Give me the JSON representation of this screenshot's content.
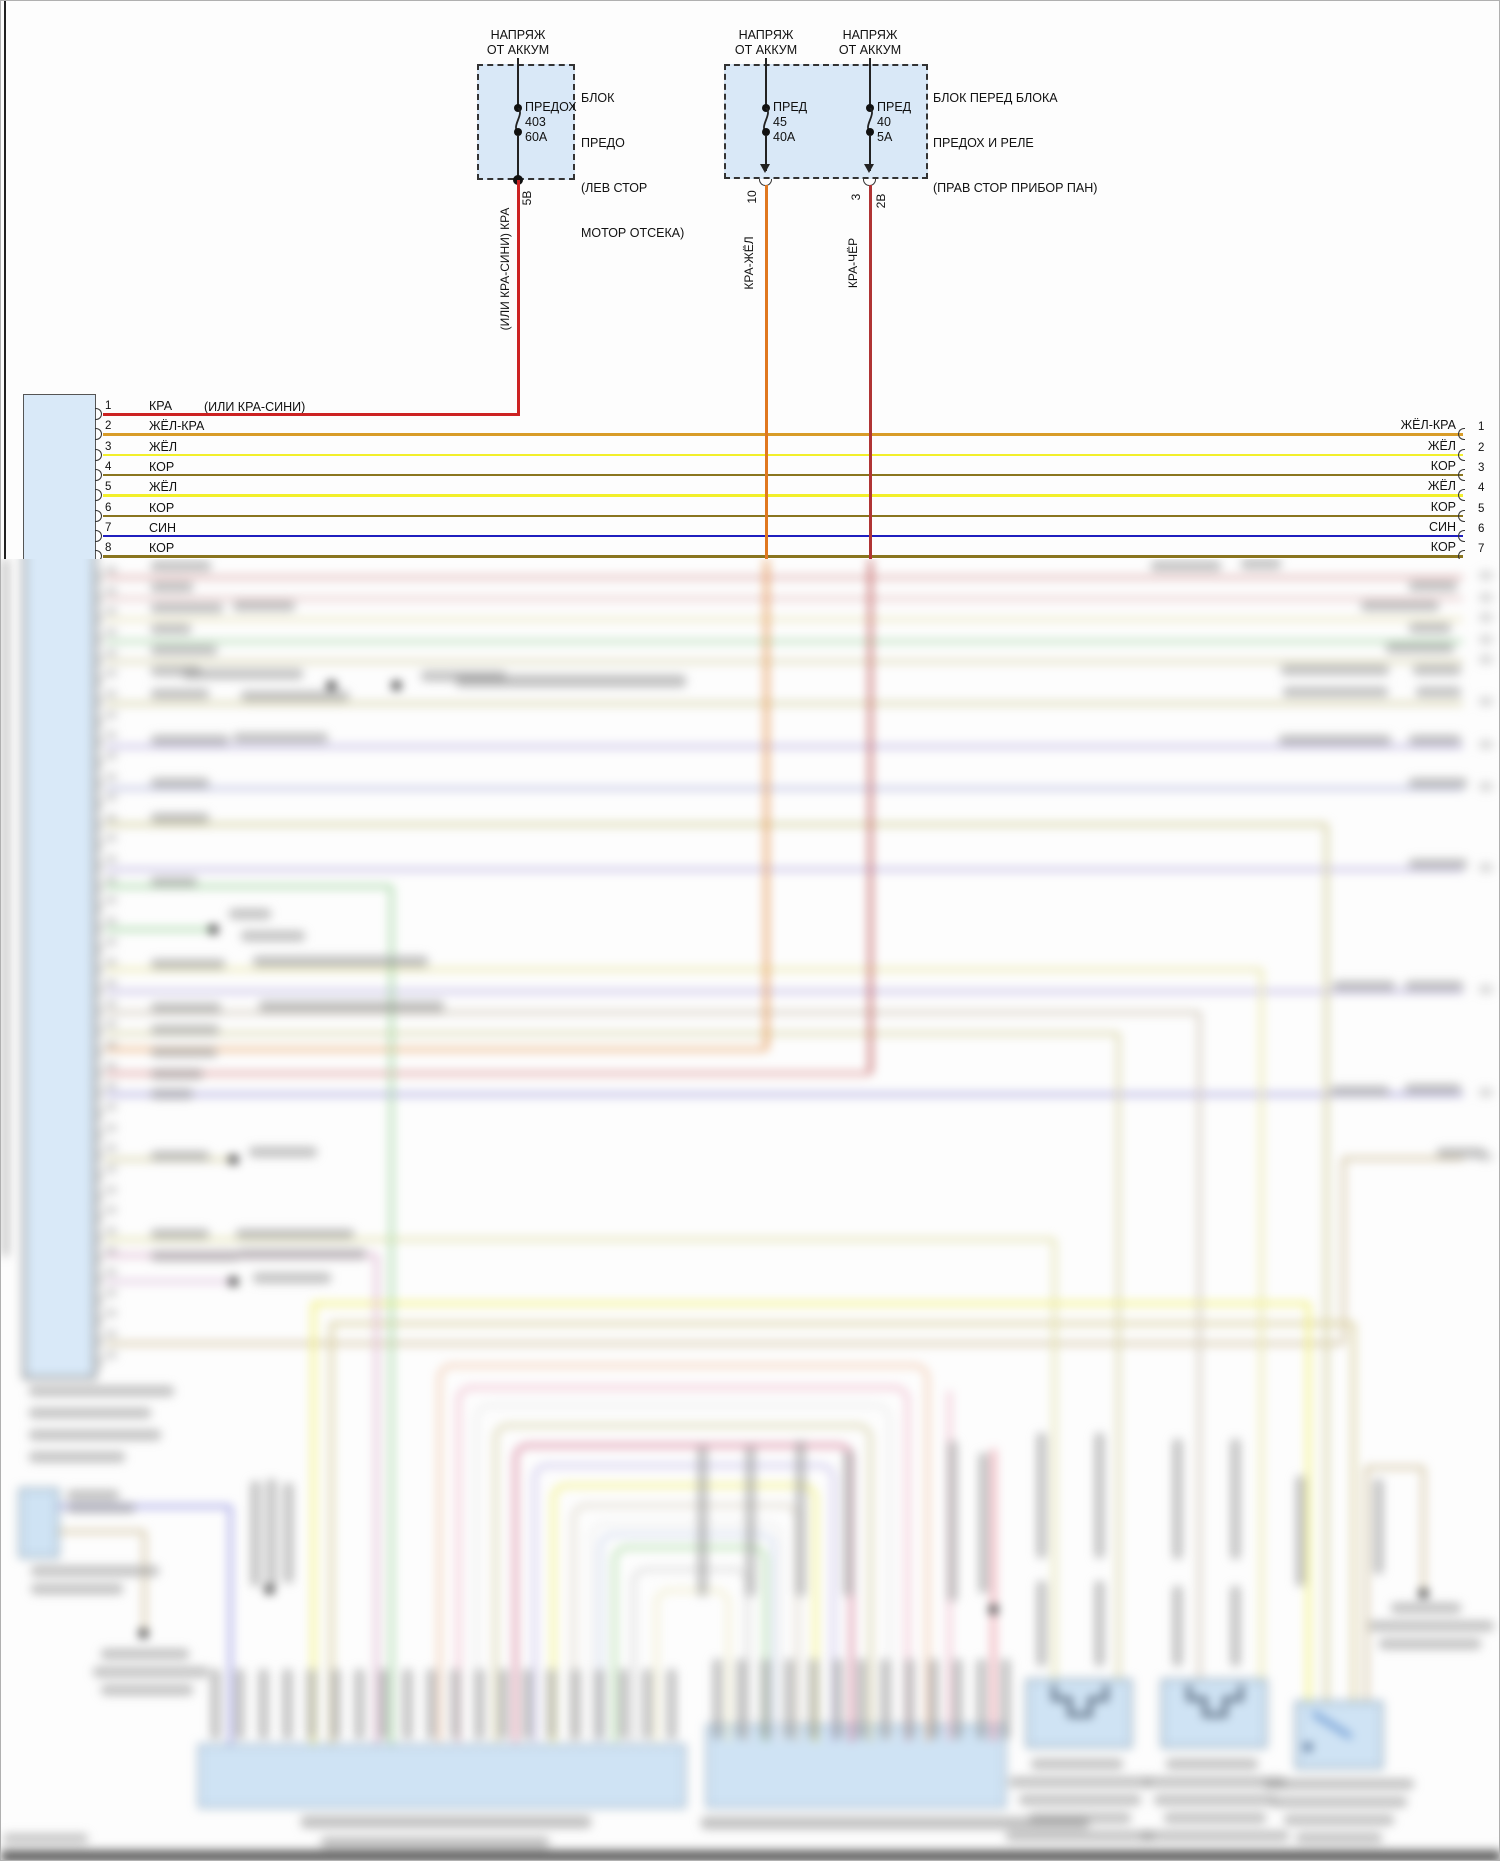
{
  "diagram": {
    "power_label": "НАПРЯЖ\nОТ АККУМ",
    "fuse_block_left": {
      "note_lines": [
        "БЛОК",
        "ПРЕДО",
        "(ЛЕВ СТОР",
        "МОТОР ОТСЕКА)"
      ],
      "fuse": {
        "name": "ПРЕДОХ",
        "number": "403",
        "rating": "60А"
      },
      "pin": "5В",
      "wire_label": "(ИЛИ КРА-СИНИ)  КРА"
    },
    "fuse_block_right": {
      "note_lines": [
        "БЛОК ПЕРЕД БЛОКА",
        "ПРЕДОХ И РЕЛЕ",
        "(ПРАВ СТОР ПРИБОР ПАН)"
      ],
      "fuses": [
        {
          "name": "ПРЕД",
          "number": "45",
          "rating": "40А",
          "pin": "10",
          "wire_label": "КРА-ЖЁЛ"
        },
        {
          "name": "ПРЕД",
          "number": "40",
          "rating": "5А",
          "pin": "3",
          "pin2": "2В",
          "wire_label": "КРА-ЧЁР"
        }
      ]
    },
    "left_connector": {
      "pins": [
        {
          "n": "1",
          "label": "КРА",
          "label2": "(ИЛИ КРА-СИНИ)",
          "color": "#cc2222"
        },
        {
          "n": "2",
          "label": "ЖЁЛ-КРА",
          "color": "#d89c28"
        },
        {
          "n": "3",
          "label": "ЖЁЛ",
          "color": "#f2ef2a"
        },
        {
          "n": "4",
          "label": "КОР",
          "color": "#8a751f"
        },
        {
          "n": "5",
          "label": "ЖЁЛ",
          "color": "#f2ef2a"
        },
        {
          "n": "6",
          "label": "КОР",
          "color": "#8a751f"
        },
        {
          "n": "7",
          "label": "СИН",
          "color": "#1f1fbf"
        },
        {
          "n": "8",
          "label": "КОР",
          "color": "#8a751f"
        }
      ]
    },
    "right_pins": [
      {
        "n": "1",
        "label": "ЖЁЛ-КРА"
      },
      {
        "n": "2",
        "label": "ЖЁЛ"
      },
      {
        "n": "3",
        "label": "КОР"
      },
      {
        "n": "4",
        "label": "ЖЁЛ"
      },
      {
        "n": "5",
        "label": "КОР"
      },
      {
        "n": "6",
        "label": "СИН"
      },
      {
        "n": "7",
        "label": "КОР"
      }
    ],
    "colors": {
      "red": "#cc2222",
      "red_yellow": "#e07820",
      "red_black": "#b03434",
      "yellow_red": "#d89c28",
      "yellow": "#f2ef2a",
      "brown": "#8a751f",
      "blue": "#1f1fbf",
      "box_fill": "#d9e8f7"
    }
  }
}
